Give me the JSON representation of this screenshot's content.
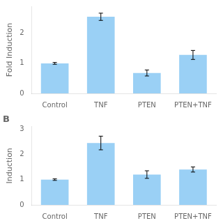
{
  "chart_data": [
    {
      "type": "bar",
      "categories": [
        "Control",
        "TNF",
        "PTEN",
        "PTEN+TNF"
      ],
      "values": [
        1.0,
        2.55,
        0.68,
        1.28
      ],
      "errors": [
        0.03,
        0.12,
        0.1,
        0.15
      ],
      "ylabel": "Fold Induction",
      "ylim": [
        0,
        2.9
      ],
      "yticks": [
        0,
        1,
        2
      ],
      "grid": false
    },
    {
      "type": "bar",
      "title": "B",
      "categories": [
        "Control",
        "TNF",
        "PTEN",
        "PTEN+TNF"
      ],
      "values": [
        1.0,
        2.45,
        1.2,
        1.4
      ],
      "errors": [
        0.03,
        0.27,
        0.15,
        0.1
      ],
      "ylabel": "Induction",
      "ylim": [
        0,
        3.1
      ],
      "yticks": [
        0,
        1,
        2,
        3
      ],
      "grid": false
    }
  ]
}
